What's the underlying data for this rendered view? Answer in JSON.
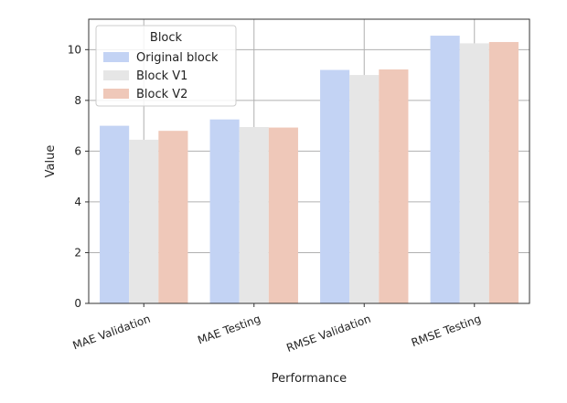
{
  "chart_data": {
    "type": "bar",
    "categories": [
      "MAE Validation",
      "MAE Testing",
      "RMSE Validation",
      "RMSE Testing"
    ],
    "series": [
      {
        "name": "Original block",
        "values": [
          7.0,
          7.25,
          9.2,
          10.55
        ],
        "color": "#c3d3f4"
      },
      {
        "name": "Block V1",
        "values": [
          6.45,
          6.95,
          9.0,
          10.25
        ],
        "color": "#e6e6e6"
      },
      {
        "name": "Block V2",
        "values": [
          6.8,
          6.93,
          9.22,
          10.3
        ],
        "color": "#efc8b9"
      }
    ],
    "xlabel": "Performance",
    "ylabel": "Value",
    "ylim": [
      0,
      11.2
    ],
    "yticks": [
      0,
      2,
      4,
      6,
      8,
      10
    ],
    "legend": {
      "title": "Block",
      "placement": "upper-left"
    },
    "grid": true
  }
}
